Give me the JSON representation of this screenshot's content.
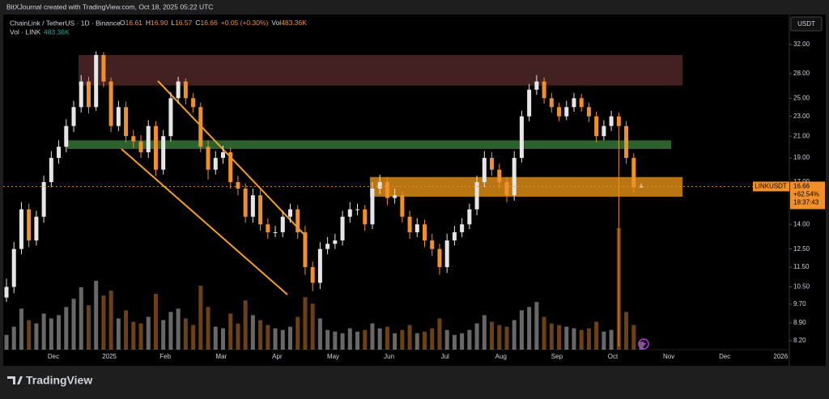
{
  "header": "BitXJournal created with TradingView.com, Oct 18, 2025 05:22 UTC",
  "footer": "TradingView",
  "chart_data": {
    "type": "candlestick",
    "symbol": "ChainLink / TetherUS · 1D · Binance",
    "legend_fields": [
      {
        "label": "O",
        "value": "16.61"
      },
      {
        "label": "H",
        "value": "16.90"
      },
      {
        "label": "L",
        "value": "16.57"
      },
      {
        "label": "C",
        "value": "16.66"
      }
    ],
    "change": "+0.05 (+0.30%)",
    "volume_field": {
      "label": "Vol",
      "value": "483.36K"
    },
    "volume_title": "Vol · LINK",
    "currency": "USDT",
    "log_scale": true,
    "ylim": [
      7.87,
      36.45
    ],
    "yticks": [
      {
        "value": 32,
        "label": "32.00"
      },
      {
        "value": 28,
        "label": "28.00"
      },
      {
        "value": 25,
        "label": "25.00"
      },
      {
        "value": 23,
        "label": "23.00"
      },
      {
        "value": 21,
        "label": "21.00"
      },
      {
        "value": 19,
        "label": "19.00"
      },
      {
        "value": 17,
        "label": "17.00"
      },
      {
        "value": 14,
        "label": "14.00"
      },
      {
        "value": 12.5,
        "label": "12.50"
      },
      {
        "value": 11.5,
        "label": "11.50"
      },
      {
        "value": 10.5,
        "label": "10.50"
      },
      {
        "value": 9.7,
        "label": "9.70"
      },
      {
        "value": 8.9,
        "label": "8.90"
      },
      {
        "value": 8.2,
        "label": "8.20"
      }
    ],
    "xticks": [
      "Dec",
      "2025",
      "Feb",
      "Mar",
      "Apr",
      "May",
      "Jun",
      "Jul",
      "Aug",
      "Sep",
      "Oct",
      "Nov",
      "Dec",
      "2026"
    ],
    "up_color": "#e6e6e6",
    "down_color": "#f0902a",
    "open": [
      10.0,
      10.5,
      12.5,
      15,
      13,
      14.5,
      17,
      19,
      20,
      22,
      24,
      27,
      24,
      30.5,
      27,
      22,
      24,
      21,
      20.5,
      19.5,
      22,
      18,
      21,
      25,
      27,
      25,
      24,
      20,
      18,
      19,
      19.5,
      17,
      16.5,
      14.5,
      16,
      14,
      13.5,
      13.5,
      14.5,
      15,
      13.5,
      11.5,
      10.7,
      12.5,
      12.8,
      13,
      14.5,
      15,
      15,
      14,
      16.5,
      17,
      15.8,
      16,
      14.5,
      13.5,
      14,
      13,
      12.5,
      11.5,
      13,
      13.5,
      14,
      15,
      17,
      19,
      18,
      17,
      16,
      19,
      23,
      26,
      27,
      25,
      24,
      23,
      24,
      25,
      24,
      23,
      21,
      22,
      23,
      22,
      19,
      16.61
    ],
    "high": [
      10.9,
      12.9,
      15.5,
      15.4,
      14.9,
      17.5,
      19.6,
      20.6,
      22.7,
      24.7,
      27.8,
      27.6,
      31.0,
      30.9,
      27.5,
      24.7,
      24.6,
      21.6,
      21.1,
      22.6,
      22.5,
      21.6,
      25.7,
      27.6,
      27.4,
      25.6,
      24.5,
      20.6,
      19.6,
      20.1,
      19.9,
      17.5,
      16.9,
      16.5,
      16.4,
      14.4,
      13.9,
      14.9,
      15.4,
      15.3,
      13.9,
      11.8,
      12.9,
      13.2,
      13.4,
      14.9,
      15.5,
      15.4,
      15.3,
      17.0,
      17.6,
      17.4,
      16.5,
      16.3,
      14.9,
      14.4,
      14.3,
      13.4,
      12.8,
      13.4,
      13.9,
      14.4,
      15.4,
      17.5,
      19.6,
      19.5,
      18.5,
      17.4,
      19.6,
      23.6,
      26.7,
      27.8,
      27.5,
      25.6,
      24.5,
      24.7,
      25.6,
      25.5,
      24.5,
      23.5,
      22.6,
      23.6,
      23.4,
      22.5,
      19.4,
      16.9
    ],
    "low": [
      9.8,
      10.2,
      12.2,
      12.6,
      12.7,
      14.1,
      16.6,
      18.5,
      19.5,
      21.4,
      23.4,
      23.3,
      23.6,
      26.3,
      21.4,
      21.5,
      20.4,
      19.9,
      19.0,
      19.0,
      17.5,
      17.6,
      20.5,
      24.4,
      24.3,
      23.4,
      19.5,
      17.2,
      17.6,
      18.5,
      16.5,
      16.0,
      14.1,
      14.1,
      13.6,
      13.1,
      13.2,
      13.2,
      14.1,
      13.1,
      11.1,
      10.3,
      10.4,
      12.2,
      12.5,
      12.7,
      14.1,
      14.6,
      13.6,
      13.7,
      16.1,
      15.3,
      15.4,
      14.1,
      13.1,
      13.2,
      12.6,
      12.1,
      11.1,
      11.2,
      12.7,
      13.2,
      13.7,
      14.6,
      16.6,
      17.5,
      16.5,
      15.5,
      15.6,
      18.6,
      22.5,
      25.4,
      24.4,
      23.4,
      22.5,
      22.6,
      23.5,
      23.5,
      22.4,
      20.4,
      20.6,
      21.5,
      8.0,
      18.5,
      16.2,
      16.57
    ],
    "close": [
      10.5,
      12.5,
      15,
      13,
      14.5,
      17,
      19,
      20,
      22,
      24,
      27,
      24,
      30.5,
      27,
      22,
      24,
      21,
      20.5,
      19.5,
      22,
      18,
      21,
      25,
      27,
      25,
      24,
      20,
      18,
      19,
      19.5,
      17,
      16.5,
      14.5,
      16,
      14,
      13.5,
      13.5,
      14.5,
      15,
      13.5,
      11.5,
      10.7,
      12.5,
      12.8,
      13,
      14.5,
      15,
      15,
      14,
      16.5,
      17,
      15.8,
      16,
      14.5,
      13.5,
      14,
      13,
      12.5,
      11.5,
      13,
      13.5,
      14,
      15,
      17,
      19,
      18,
      17,
      16,
      19,
      23,
      26,
      27,
      25,
      24,
      23,
      24,
      25,
      24,
      23,
      21,
      22,
      23,
      22,
      19,
      16.61,
      16.66
    ],
    "volume": [
      900000,
      1400000,
      2500000,
      1800000,
      1600000,
      2200000,
      1900000,
      2100000,
      2600000,
      3100000,
      3800000,
      2700000,
      4200000,
      3300000,
      3600000,
      1900000,
      2400000,
      1700000,
      1600000,
      2000000,
      3400000,
      1800000,
      2300000,
      2500000,
      1900000,
      1500000,
      3900000,
      2600000,
      1400000,
      1300000,
      2200000,
      1600000,
      3000000,
      2100000,
      1800000,
      1500000,
      1300000,
      1200000,
      1400000,
      2000000,
      3200000,
      2800000,
      1900000,
      1200000,
      1100000,
      1000000,
      1300000,
      1100000,
      1200000,
      1600000,
      1300000,
      1400000,
      1000000,
      1200000,
      1500000,
      1000000,
      1100000,
      1300000,
      1900000,
      1200000,
      900000,
      1000000,
      1200000,
      1600000,
      2100000,
      1700000,
      1500000,
      1400000,
      1800000,
      2400000,
      2600000,
      2900000,
      2000000,
      1600000,
      1500000,
      1400000,
      1300000,
      1200000,
      1300000,
      1700000,
      1100000,
      1200000,
      7400000,
      2300000,
      1500000,
      483360
    ],
    "zones": [
      {
        "low": 26.5,
        "high": 30.5,
        "color": "#4a2325"
      },
      {
        "low": 19.8,
        "high": 20.6,
        "color": "#2f6b32"
      },
      {
        "low": 15.9,
        "high": 17.4,
        "color": "#d98a14"
      }
    ],
    "last_price": {
      "symbol": "LINKUSDT",
      "price": 16.66,
      "change": "+62.54%",
      "countdown": "18:37:43",
      "color": "#f0902a"
    }
  }
}
